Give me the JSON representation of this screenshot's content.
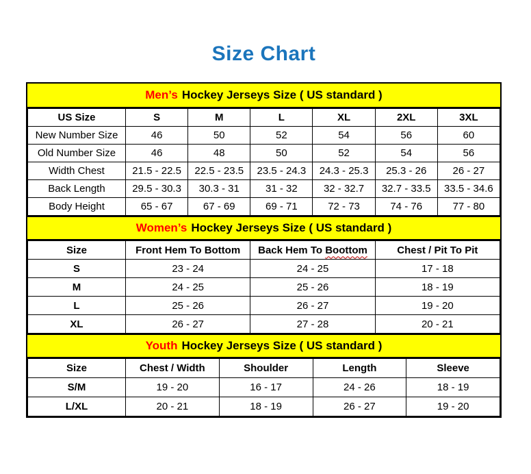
{
  "page": {
    "title": "Size Chart"
  },
  "colors": {
    "title_blue": "#1B75BC",
    "band_background": "#FFFF00",
    "band_highlight_red": "#FF0000",
    "border_black": "#000000",
    "misspell_underline_red": "#C00000"
  },
  "tables": [
    {
      "id": "mens",
      "band": {
        "highlight": "Men’s",
        "rest": "Hockey Jerseys Size ( US standard )"
      },
      "columns": [
        "US Size",
        "S",
        "M",
        "L",
        "XL",
        "2XL",
        "3XL"
      ],
      "bold_row_labels": false,
      "rows": [
        {
          "label": "New Number Size",
          "values": [
            "46",
            "50",
            "52",
            "54",
            "56",
            "60"
          ]
        },
        {
          "label": "Old Number Size",
          "values": [
            "46",
            "48",
            "50",
            "52",
            "54",
            "56"
          ]
        },
        {
          "label": "Width Chest",
          "values": [
            "21.5 - 22.5",
            "22.5 - 23.5",
            "23.5 - 24.3",
            "24.3 - 25.3",
            "25.3 - 26",
            "26 - 27"
          ]
        },
        {
          "label": "Back Length",
          "values": [
            "29.5 - 30.3",
            "30.3 - 31",
            "31 - 32",
            "32 - 32.7",
            "32.7 - 33.5",
            "33.5 - 34.6"
          ]
        },
        {
          "label": "Body Height",
          "values": [
            "65 - 67",
            "67 - 69",
            "69 - 71",
            "72 - 73",
            "74 - 76",
            "77 - 80"
          ]
        }
      ]
    },
    {
      "id": "womens",
      "band": {
        "highlight": "Women’s",
        "rest": "Hockey Jerseys Size ( US standard )"
      },
      "columns": [
        "Size",
        "Front Hem To Bottom",
        "Back Hem To Boottom",
        "Chest / Pit To Pit"
      ],
      "misspell": {
        "column_index": 2,
        "word": "Boottom"
      },
      "bold_row_labels": true,
      "rows": [
        {
          "label": "S",
          "values": [
            "23 - 24",
            "24 - 25",
            "17 - 18"
          ]
        },
        {
          "label": "M",
          "values": [
            "24 - 25",
            "25 - 26",
            "18 - 19"
          ]
        },
        {
          "label": "L",
          "values": [
            "25 - 26",
            "26 - 27",
            "19 - 20"
          ]
        },
        {
          "label": "XL",
          "values": [
            "26 - 27",
            "27 - 28",
            "20 - 21"
          ]
        }
      ]
    },
    {
      "id": "youth",
      "band": {
        "highlight": "Youth",
        "rest": "Hockey Jerseys Size ( US standard )"
      },
      "columns": [
        "Size",
        "Chest / Width",
        "Shoulder",
        "Length",
        "Sleeve"
      ],
      "bold_row_labels": true,
      "rows": [
        {
          "label": "S/M",
          "values": [
            "19 - 20",
            "16 - 17",
            "24 - 26",
            "18 - 19"
          ]
        },
        {
          "label": "L/XL",
          "values": [
            "20 - 21",
            "18 - 19",
            "26 - 27",
            "19 - 20"
          ]
        }
      ]
    }
  ]
}
